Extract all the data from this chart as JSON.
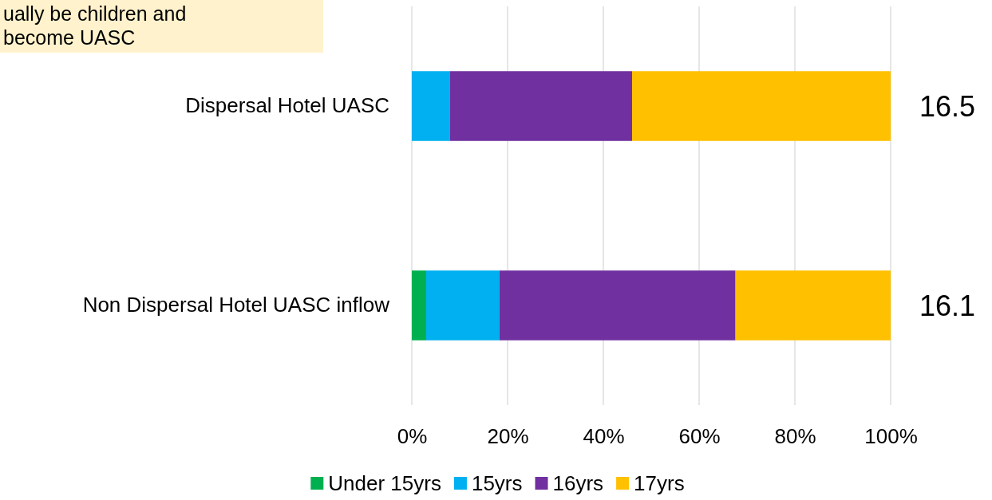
{
  "chart_data": {
    "type": "bar",
    "orientation": "horizontal",
    "stacked": true,
    "categories": [
      "Dispersal Hotel UASC",
      "Non Dispersal Hotel UASC inflow"
    ],
    "series": [
      {
        "name": "Under 15yrs",
        "color": "#00b050",
        "values": [
          0,
          3
        ]
      },
      {
        "name": "15yrs",
        "color": "#00b0f0",
        "values": [
          8,
          15.3
        ]
      },
      {
        "name": "16yrs",
        "color": "#7030a0",
        "values": [
          38,
          49.3
        ]
      },
      {
        "name": "17yrs",
        "color": "#ffc000",
        "values": [
          54,
          32.4
        ]
      }
    ],
    "xlim": [
      0,
      100
    ],
    "xticks": [
      {
        "value": 0,
        "label": "0%"
      },
      {
        "value": 20,
        "label": "20%"
      },
      {
        "value": 40,
        "label": "40%"
      },
      {
        "value": 60,
        "label": "60%"
      },
      {
        "value": 80,
        "label": "80%"
      },
      {
        "value": 100,
        "label": "100%"
      }
    ],
    "grid": "x",
    "legend": "bottom",
    "annotations": [
      "ually be children and\nbecome UASC",
      "16.5",
      "16.1"
    ]
  }
}
